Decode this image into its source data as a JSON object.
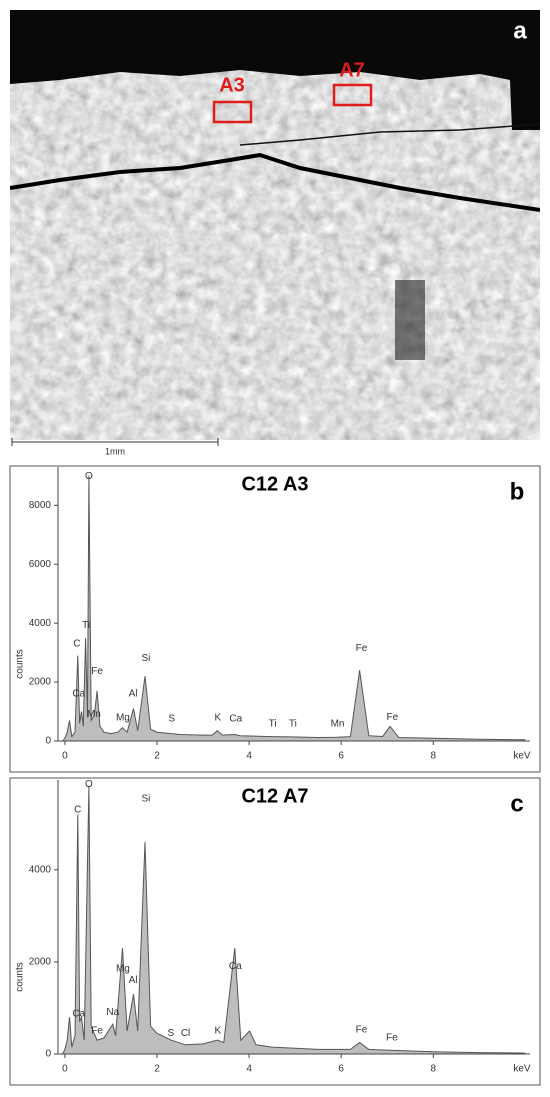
{
  "image_panel": {
    "label": "a",
    "regions": [
      "A3",
      "A7"
    ],
    "scale_bar": "1mm"
  },
  "chart_data": [
    {
      "type": "area",
      "panel": "b",
      "title": "C12 A3",
      "xlabel": "keV",
      "ylabel": "counts",
      "xlim": [
        -0.15,
        10.1
      ],
      "ylim": [
        0,
        9300
      ],
      "xticks": [
        0,
        2,
        4,
        6,
        8
      ],
      "yticks": [
        0,
        2000,
        4000,
        6000,
        8000
      ],
      "color": "#bdbdbd",
      "x": [
        -0.05,
        0.0,
        0.05,
        0.1,
        0.15,
        0.22,
        0.28,
        0.32,
        0.36,
        0.4,
        0.45,
        0.49,
        0.52,
        0.57,
        0.64,
        0.7,
        0.76,
        0.85,
        1.0,
        1.15,
        1.25,
        1.35,
        1.49,
        1.58,
        1.74,
        1.86,
        2.0,
        2.31,
        2.5,
        3.0,
        3.2,
        3.31,
        3.42,
        3.69,
        3.8,
        4.5,
        4.93,
        5.5,
        5.9,
        6.2,
        6.4,
        6.6,
        6.9,
        7.06,
        7.25,
        8.0,
        9.0,
        10.0
      ],
      "values": [
        0,
        100,
        300,
        700,
        150,
        300,
        2900,
        600,
        1000,
        500,
        3500,
        800,
        9000,
        700,
        900,
        1700,
        500,
        300,
        250,
        300,
        450,
        300,
        1100,
        350,
        2200,
        400,
        300,
        250,
        220,
        200,
        200,
        350,
        200,
        220,
        180,
        150,
        140,
        120,
        130,
        150,
        2400,
        180,
        150,
        500,
        120,
        90,
        60,
        40
      ],
      "annotations": [
        {
          "text": "O",
          "x": 0.52,
          "y": 8980
        },
        {
          "text": "C",
          "x": 0.26,
          "y": 3290
        },
        {
          "text": "Ti",
          "x": 0.46,
          "y": 3930
        },
        {
          "text": "Fe",
          "x": 0.7,
          "y": 2370
        },
        {
          "text": "Ca",
          "x": 0.3,
          "y": 1600
        },
        {
          "text": "Mn",
          "x": 0.63,
          "y": 900
        },
        {
          "text": "Mg",
          "x": 1.26,
          "y": 780
        },
        {
          "text": "Al",
          "x": 1.48,
          "y": 1600
        },
        {
          "text": "Si",
          "x": 1.76,
          "y": 2810
        },
        {
          "text": "S",
          "x": 2.32,
          "y": 750
        },
        {
          "text": "K",
          "x": 3.32,
          "y": 780
        },
        {
          "text": "Ca",
          "x": 3.71,
          "y": 750
        },
        {
          "text": "Ti",
          "x": 4.51,
          "y": 580
        },
        {
          "text": "Ti",
          "x": 4.95,
          "y": 580
        },
        {
          "text": "Mn",
          "x": 5.92,
          "y": 580
        },
        {
          "text": "Fe",
          "x": 6.44,
          "y": 3150
        },
        {
          "text": "Fe",
          "x": 7.11,
          "y": 810
        }
      ]
    },
    {
      "type": "area",
      "panel": "c",
      "title": "C12 A7",
      "xlabel": "keV",
      "ylabel": "counts",
      "xlim": [
        -0.15,
        10.1
      ],
      "ylim": [
        0,
        5950
      ],
      "xticks": [
        0,
        2,
        4,
        6,
        8
      ],
      "yticks": [
        0,
        2000,
        4000
      ],
      "color": "#bdbdbd",
      "x": [
        -0.05,
        0.0,
        0.05,
        0.1,
        0.15,
        0.22,
        0.28,
        0.32,
        0.36,
        0.42,
        0.52,
        0.57,
        0.7,
        0.85,
        1.04,
        1.1,
        1.25,
        1.35,
        1.49,
        1.58,
        1.74,
        1.86,
        2.0,
        2.31,
        2.62,
        3.0,
        3.31,
        3.45,
        3.69,
        3.82,
        4.01,
        4.15,
        4.5,
        5.5,
        6.2,
        6.4,
        6.6,
        7.06,
        8.0,
        9.0,
        10.0
      ],
      "values": [
        0,
        100,
        300,
        800,
        150,
        400,
        5200,
        700,
        800,
        300,
        5800,
        600,
        300,
        350,
        650,
        400,
        2300,
        500,
        1300,
        500,
        4600,
        600,
        450,
        300,
        200,
        220,
        300,
        250,
        2300,
        300,
        500,
        200,
        150,
        100,
        100,
        250,
        100,
        80,
        50,
        30,
        20
      ],
      "annotations": [
        {
          "text": "O",
          "x": 0.52,
          "y": 5850
        },
        {
          "text": "C",
          "x": 0.28,
          "y": 5300
        },
        {
          "text": "Ca",
          "x": 0.3,
          "y": 870
        },
        {
          "text": "Fe",
          "x": 0.7,
          "y": 500
        },
        {
          "text": "Na",
          "x": 1.04,
          "y": 900
        },
        {
          "text": "Mg",
          "x": 1.26,
          "y": 1850
        },
        {
          "text": "Al",
          "x": 1.48,
          "y": 1600
        },
        {
          "text": "Si",
          "x": 1.76,
          "y": 5540
        },
        {
          "text": "S",
          "x": 2.3,
          "y": 450
        },
        {
          "text": "Cl",
          "x": 2.62,
          "y": 450
        },
        {
          "text": "K",
          "x": 3.32,
          "y": 500
        },
        {
          "text": "Ca",
          "x": 3.7,
          "y": 1900
        },
        {
          "text": "Fe",
          "x": 6.44,
          "y": 520
        },
        {
          "text": "Fe",
          "x": 7.1,
          "y": 350
        }
      ]
    }
  ]
}
